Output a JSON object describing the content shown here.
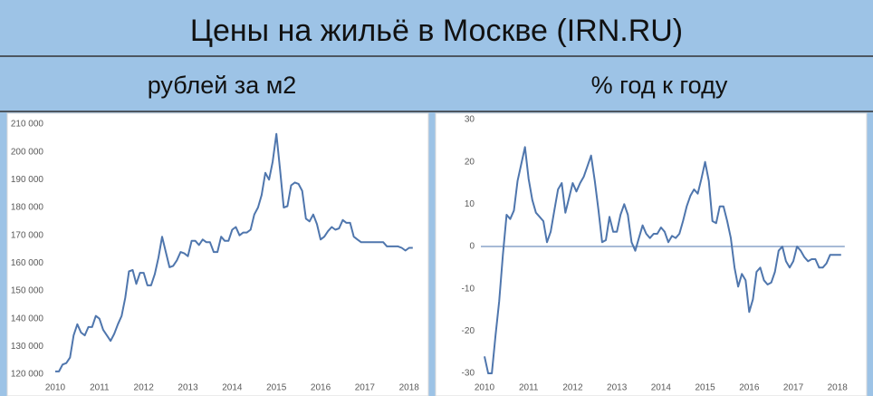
{
  "header": {
    "title": "Цены на жильё в Москве (IRN.RU)"
  },
  "chart_data": [
    {
      "type": "line",
      "subtitle": "рублей за м2",
      "categories": [
        "2010",
        null,
        null,
        null,
        null,
        null,
        null,
        null,
        null,
        null,
        null,
        null,
        "2011",
        null,
        null,
        null,
        null,
        null,
        null,
        null,
        null,
        null,
        null,
        null,
        "2012",
        null,
        null,
        null,
        null,
        null,
        null,
        null,
        null,
        null,
        null,
        null,
        "2013",
        null,
        null,
        null,
        null,
        null,
        null,
        null,
        null,
        null,
        null,
        null,
        "2014",
        null,
        null,
        null,
        null,
        null,
        null,
        null,
        null,
        null,
        null,
        null,
        "2015",
        null,
        null,
        null,
        null,
        null,
        null,
        null,
        null,
        null,
        null,
        null,
        "2016",
        null,
        null,
        null,
        null,
        null,
        null,
        null,
        null,
        null,
        null,
        null,
        "2017",
        null,
        null,
        null,
        null,
        null,
        null,
        null,
        null,
        null,
        null,
        null,
        "2018",
        null
      ],
      "series": [
        {
          "color": "#4f76ad",
          "values": [
            121000,
            121000,
            123500,
            124000,
            126000,
            134000,
            138000,
            135000,
            134000,
            137000,
            137000,
            141000,
            140000,
            136000,
            134000,
            132000,
            134500,
            138000,
            141000,
            147500,
            157000,
            157500,
            152500,
            156500,
            156500,
            152000,
            152000,
            156000,
            162000,
            169500,
            164000,
            158500,
            159000,
            161000,
            164000,
            163500,
            162500,
            168000,
            168000,
            166500,
            168500,
            167500,
            167500,
            164000,
            164000,
            169500,
            168000,
            168000,
            172000,
            173000,
            170000,
            171000,
            171000,
            172000,
            177500,
            180000,
            184500,
            192500,
            190000,
            196500,
            206500,
            193500,
            180000,
            180500,
            188000,
            189000,
            188500,
            186000,
            176000,
            175000,
            177500,
            174000,
            168500,
            169500,
            171500,
            173000,
            172000,
            172500,
            175500,
            174500,
            174500,
            169500,
            168500,
            167500,
            167500,
            167500,
            167500,
            167500,
            167500,
            167500,
            166000,
            166000,
            166000,
            166000,
            165500,
            164500,
            165500,
            165500
          ]
        }
      ],
      "ylim": [
        120000,
        210000
      ],
      "yticks": [
        {
          "value": 120000,
          "label": "120 000"
        },
        {
          "value": 130000,
          "label": "130 000"
        },
        {
          "value": 140000,
          "label": "140 000"
        },
        {
          "value": 150000,
          "label": "150 000"
        },
        {
          "value": 160000,
          "label": "160 000"
        },
        {
          "value": 170000,
          "label": "170 000"
        },
        {
          "value": 180000,
          "label": "180 000"
        },
        {
          "value": 190000,
          "label": "190 000"
        },
        {
          "value": 200000,
          "label": "200 000"
        },
        {
          "value": 210000,
          "label": "210 000"
        }
      ],
      "grid": false,
      "zero_line": false
    },
    {
      "type": "line",
      "subtitle": "% год к году",
      "categories": [
        "2010",
        null,
        null,
        null,
        null,
        null,
        null,
        null,
        null,
        null,
        null,
        null,
        "2011",
        null,
        null,
        null,
        null,
        null,
        null,
        null,
        null,
        null,
        null,
        null,
        "2012",
        null,
        null,
        null,
        null,
        null,
        null,
        null,
        null,
        null,
        null,
        null,
        "2013",
        null,
        null,
        null,
        null,
        null,
        null,
        null,
        null,
        null,
        null,
        null,
        "2014",
        null,
        null,
        null,
        null,
        null,
        null,
        null,
        null,
        null,
        null,
        null,
        "2015",
        null,
        null,
        null,
        null,
        null,
        null,
        null,
        null,
        null,
        null,
        null,
        "2016",
        null,
        null,
        null,
        null,
        null,
        null,
        null,
        null,
        null,
        null,
        null,
        "2017",
        null,
        null,
        null,
        null,
        null,
        null,
        null,
        null,
        null,
        null,
        null,
        "2018",
        null
      ],
      "series": [
        {
          "color": "#4f76ad",
          "values": [
            -26,
            -30,
            -30,
            -21,
            -13,
            -2,
            7.5,
            6.5,
            8.5,
            15.5,
            19.5,
            23.5,
            16,
            11,
            8,
            7,
            6,
            1,
            3.5,
            8.5,
            13.5,
            15,
            8,
            11.5,
            15,
            13,
            15,
            16.5,
            19,
            21.5,
            15.5,
            8.5,
            1,
            1.5,
            7,
            3.5,
            3.5,
            7.5,
            10,
            7.5,
            1,
            -1,
            2,
            5,
            3,
            2,
            3,
            3,
            4.5,
            3.5,
            1,
            2.5,
            2,
            3,
            6,
            9.5,
            12,
            13.5,
            12.5,
            16,
            20,
            15.5,
            6,
            5.5,
            9.5,
            9.5,
            6,
            2,
            -5,
            -9.5,
            -6.5,
            -8,
            -15.5,
            -12.5,
            -6,
            -5,
            -8,
            -9,
            -8.5,
            -6,
            -1,
            0,
            -3.5,
            -5,
            -3.5,
            0,
            -1,
            -2.5,
            -3.5,
            -3,
            -3,
            -5,
            -5,
            -4,
            -2,
            -2,
            -2,
            -2
          ]
        }
      ],
      "ylim": [
        -30,
        30
      ],
      "yticks": [
        -30,
        -20,
        -10,
        0,
        10,
        20,
        30
      ],
      "grid": false,
      "zero_line": true
    }
  ]
}
